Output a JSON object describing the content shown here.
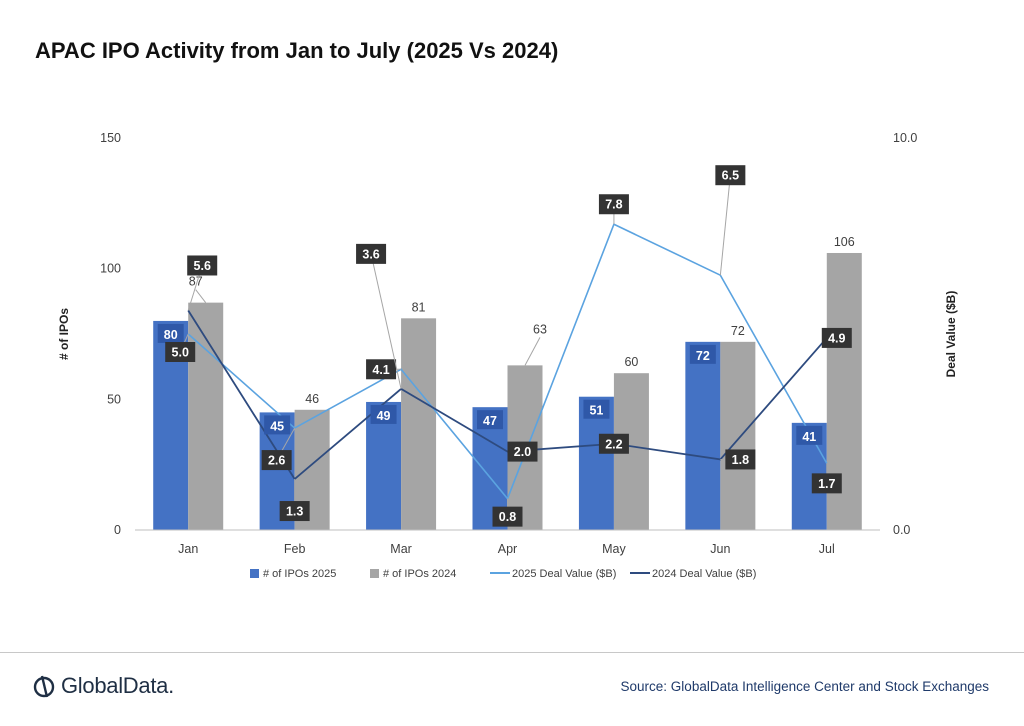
{
  "title": "APAC IPO Activity from Jan to July (2025 Vs 2024)",
  "source": "Source: GlobalData Intelligence Center and Stock Exchanges",
  "brand": "GlobalData.",
  "chart_data": {
    "type": "bar",
    "categories": [
      "Jan",
      "Feb",
      "Mar",
      "Apr",
      "May",
      "Jun",
      "Jul"
    ],
    "ylabel": "# of IPOs",
    "y2label": "Deal Value ($B)",
    "ylim": [
      0,
      150
    ],
    "y2lim": [
      0.0,
      10.0
    ],
    "yticks": [
      "0",
      "50",
      "100",
      "150"
    ],
    "y2ticks": [
      "0.0",
      "10.0"
    ],
    "grid": false,
    "legend": "bottom",
    "series": [
      {
        "name": "# of IPOs 2025",
        "type": "bar",
        "axis": "left",
        "color": "#4472c4",
        "values": [
          80,
          45,
          49,
          47,
          51,
          72,
          41
        ]
      },
      {
        "name": "# of IPOs 2024",
        "type": "bar",
        "axis": "left",
        "color": "#a5a5a5",
        "values": [
          87,
          46,
          81,
          63,
          60,
          72,
          106
        ]
      },
      {
        "name": "2025 Deal Value ($B)",
        "type": "line",
        "axis": "right",
        "color": "#5ba3e0",
        "values": [
          5.0,
          2.6,
          4.1,
          0.8,
          7.8,
          6.5,
          1.7
        ]
      },
      {
        "name": "2024 Deal Value ($B)",
        "type": "line",
        "axis": "right",
        "color": "#2e4b7f",
        "values": [
          5.6,
          1.3,
          3.6,
          2.0,
          2.2,
          1.8,
          4.9
        ]
      }
    ]
  }
}
